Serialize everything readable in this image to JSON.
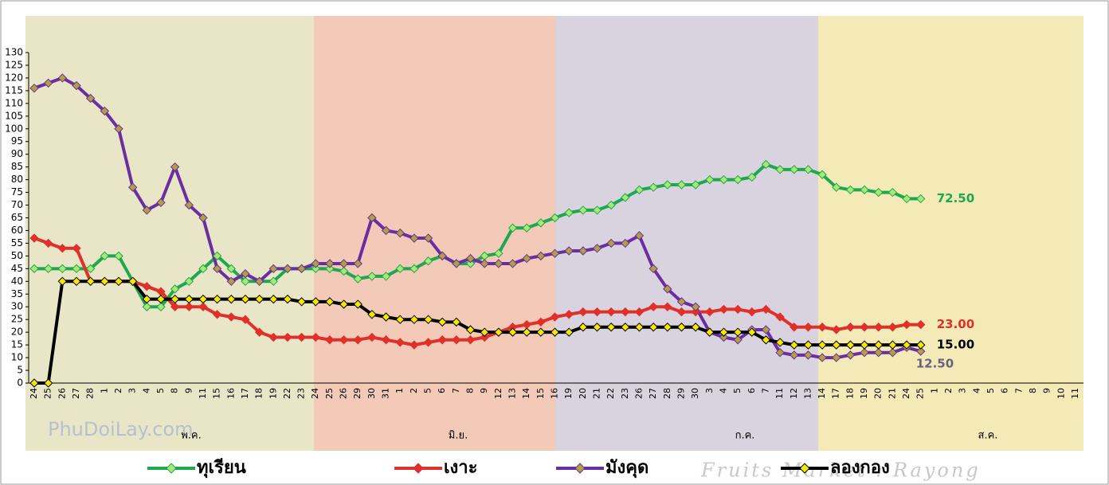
{
  "chart_data": {
    "type": "line",
    "logo_text": "PhuDoiLay.com",
    "footer_text": "Fruits Market : Rayong",
    "months": [
      "พ.ค.",
      "มิ.ย.",
      "ก.ค.",
      "ส.ค."
    ],
    "categories": [
      "24",
      "25",
      "26",
      "27",
      "28",
      "1",
      "2",
      "3",
      "4",
      "5",
      "8",
      "9",
      "11",
      "15",
      "16",
      "17",
      "18",
      "19",
      "22",
      "23",
      "24",
      "25",
      "26",
      "29",
      "30",
      "31",
      "1",
      "2",
      "5",
      "6",
      "7",
      "8",
      "9",
      "12",
      "13",
      "14",
      "15",
      "16",
      "19",
      "20",
      "21",
      "22",
      "23",
      "26",
      "27",
      "28",
      "29",
      "30",
      "3",
      "4",
      "5",
      "6",
      "7",
      "11",
      "12",
      "13",
      "14",
      "17",
      "18",
      "19",
      "20",
      "21",
      "24",
      "25",
      "1",
      "2",
      "3",
      "4",
      "5",
      "6",
      "7",
      "8",
      "9",
      "10",
      "11"
    ],
    "ylim": [
      0,
      130
    ],
    "yticks": [
      0,
      5,
      10,
      15,
      20,
      25,
      30,
      35,
      40,
      45,
      50,
      55,
      60,
      65,
      70,
      75,
      80,
      85,
      90,
      95,
      100,
      105,
      110,
      115,
      120,
      125,
      130
    ],
    "series": [
      {
        "name": "ทุเรียน",
        "color": "#1ea84e",
        "marker_color": "#a8e878",
        "values": [
          45,
          45,
          45,
          45,
          45,
          50,
          50,
          40,
          30,
          30,
          37,
          40,
          45,
          50,
          45,
          40,
          40,
          40,
          45,
          45,
          45,
          45,
          44,
          41,
          42,
          42,
          45,
          45,
          48,
          50,
          47,
          47,
          50,
          51,
          61,
          61,
          63,
          65,
          67,
          68,
          68,
          70,
          73,
          76,
          77,
          78,
          78,
          78,
          80,
          80,
          80,
          81,
          86,
          84,
          84,
          84,
          82,
          77,
          76,
          76,
          75,
          75,
          72.5,
          72.5,
          null,
          null,
          null,
          null,
          null,
          null,
          null,
          null,
          null,
          null,
          null
        ],
        "value_labels": [
          null,
          null,
          null,
          null,
          null,
          null,
          null,
          null,
          null,
          null,
          null,
          null,
          null,
          null,
          null,
          null,
          null,
          null,
          null,
          null,
          null,
          null,
          null,
          null,
          null,
          null,
          null,
          null,
          null,
          null,
          null,
          null,
          null,
          null,
          null,
          null,
          null,
          null,
          null,
          null,
          null,
          null,
          null,
          null,
          null,
          null,
          null,
          null,
          null,
          null,
          null,
          null,
          null,
          null,
          null,
          null,
          null,
          null,
          null,
          null,
          null,
          null,
          null,
          "72.50",
          null,
          null,
          null,
          null,
          null,
          null,
          null,
          null,
          null,
          null,
          null
        ]
      },
      {
        "name": "เงาะ",
        "color": "#e0302a",
        "marker_color": "#e0302a",
        "values": [
          57,
          55,
          53,
          53,
          40,
          40,
          40,
          40,
          38,
          36,
          30,
          30,
          30,
          27,
          26,
          25,
          20,
          18,
          18,
          18,
          18,
          17,
          17,
          17,
          18,
          17,
          16,
          15,
          16,
          17,
          17,
          17,
          18,
          20,
          22,
          23,
          24,
          26,
          27,
          28,
          28,
          28,
          28,
          28,
          30,
          30,
          28,
          28,
          28,
          29,
          29,
          28,
          29,
          26,
          22,
          22,
          22,
          21,
          22,
          22,
          22,
          22,
          23,
          23,
          null,
          null,
          null,
          null,
          null,
          null,
          null,
          null,
          null,
          null,
          null
        ],
        "value_labels": [
          null,
          null,
          null,
          null,
          null,
          null,
          null,
          null,
          null,
          null,
          null,
          null,
          null,
          null,
          null,
          null,
          null,
          null,
          null,
          null,
          null,
          null,
          null,
          null,
          null,
          null,
          null,
          null,
          null,
          null,
          null,
          null,
          null,
          null,
          null,
          null,
          null,
          null,
          null,
          null,
          null,
          null,
          null,
          null,
          null,
          null,
          null,
          null,
          null,
          null,
          null,
          null,
          null,
          null,
          null,
          null,
          null,
          null,
          null,
          null,
          null,
          null,
          null,
          "23.00",
          null,
          null,
          null,
          null,
          null,
          null,
          null,
          null,
          null,
          null,
          null
        ]
      },
      {
        "name": "มังคุด",
        "color": "#6a2ea0",
        "marker_color": "#b0a040",
        "values": [
          116,
          118,
          120,
          117,
          112,
          107,
          100,
          77,
          68,
          71,
          85,
          70,
          65,
          45,
          40,
          43,
          40,
          45,
          45,
          45,
          47,
          47,
          47,
          47,
          65,
          60,
          59,
          57,
          57,
          50,
          47,
          49,
          47,
          47,
          47,
          49,
          50,
          51,
          52,
          52,
          53,
          55,
          55,
          58,
          45,
          37,
          32,
          30,
          20,
          18,
          17,
          21,
          21,
          12,
          11,
          11,
          10,
          10,
          11,
          12,
          12,
          12,
          14,
          12.5,
          null,
          null,
          null,
          null,
          null,
          null,
          null,
          null,
          null,
          null,
          null
        ],
        "value_labels": [
          null,
          null,
          null,
          null,
          null,
          null,
          null,
          null,
          null,
          null,
          null,
          null,
          null,
          null,
          null,
          null,
          null,
          null,
          null,
          null,
          null,
          null,
          null,
          null,
          null,
          null,
          null,
          null,
          null,
          null,
          null,
          null,
          null,
          null,
          null,
          null,
          null,
          null,
          null,
          null,
          null,
          null,
          null,
          null,
          null,
          null,
          null,
          null,
          null,
          null,
          null,
          null,
          null,
          null,
          null,
          null,
          null,
          null,
          null,
          null,
          null,
          null,
          null,
          "12.50",
          null,
          null,
          null,
          null,
          null,
          null,
          null,
          null,
          null,
          null,
          null
        ]
      },
      {
        "name": "ลองกอง",
        "color": "#000000",
        "marker_color": "#f5e800",
        "values": [
          0,
          0,
          40,
          40,
          40,
          40,
          40,
          40,
          33,
          33,
          33,
          33,
          33,
          33,
          33,
          33,
          33,
          33,
          33,
          32,
          32,
          32,
          31,
          31,
          27,
          26,
          25,
          25,
          25,
          24,
          24,
          21,
          20,
          20,
          20,
          20,
          20,
          20,
          20,
          22,
          22,
          22,
          22,
          22,
          22,
          22,
          22,
          22,
          20,
          20,
          20,
          20,
          17,
          16,
          15,
          15,
          15,
          15,
          15,
          15,
          15,
          15,
          15,
          15,
          null,
          null,
          null,
          null,
          null,
          null,
          null,
          null,
          null,
          null,
          null
        ],
        "value_labels": [
          null,
          null,
          null,
          null,
          null,
          null,
          null,
          null,
          null,
          null,
          null,
          null,
          null,
          null,
          null,
          null,
          null,
          null,
          null,
          null,
          null,
          null,
          null,
          null,
          null,
          null,
          null,
          null,
          null,
          null,
          null,
          null,
          null,
          null,
          null,
          null,
          null,
          null,
          null,
          null,
          null,
          null,
          null,
          null,
          null,
          null,
          null,
          null,
          null,
          null,
          null,
          null,
          null,
          null,
          null,
          null,
          null,
          null,
          null,
          null,
          null,
          null,
          null,
          "15.00",
          null,
          null,
          null,
          null,
          null,
          null,
          null,
          null,
          null,
          null,
          null
        ]
      }
    ]
  }
}
